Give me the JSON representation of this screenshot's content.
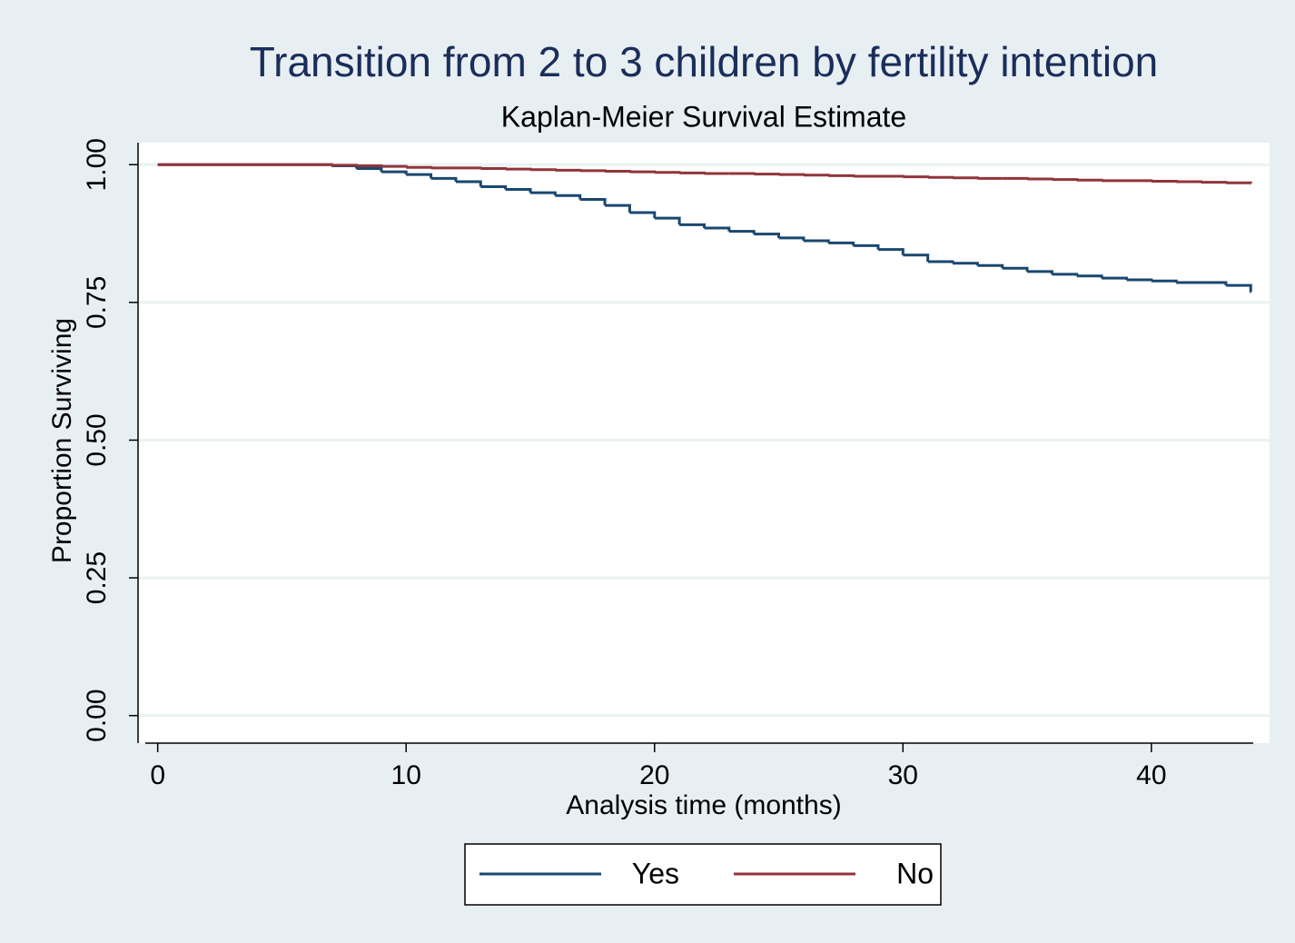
{
  "chart_data": {
    "type": "line",
    "step": true,
    "title": "Transition from 2 to 3 children by fertility intention",
    "subtitle": "Kaplan-Meier Survival Estimate",
    "x_label": "Analysis time (months)",
    "y_label": "Proportion Surviving",
    "x": [
      0,
      1,
      2,
      3,
      4,
      5,
      6,
      7,
      8,
      9,
      10,
      11,
      12,
      13,
      14,
      15,
      16,
      17,
      18,
      19,
      20,
      21,
      22,
      23,
      24,
      25,
      26,
      27,
      28,
      29,
      30,
      31,
      32,
      33,
      34,
      35,
      36,
      37,
      38,
      39,
      40,
      41,
      42,
      43,
      44
    ],
    "series": [
      {
        "name": "Yes",
        "color": "#1a476f",
        "values": [
          1,
          1,
          1,
          1,
          1,
          1,
          1,
          0.998,
          0.993,
          0.987,
          0.982,
          0.975,
          0.969,
          0.96,
          0.955,
          0.949,
          0.944,
          0.937,
          0.926,
          0.913,
          0.903,
          0.891,
          0.885,
          0.879,
          0.874,
          0.867,
          0.862,
          0.858,
          0.853,
          0.846,
          0.836,
          0.824,
          0.821,
          0.817,
          0.812,
          0.806,
          0.801,
          0.798,
          0.794,
          0.791,
          0.789,
          0.786,
          0.786,
          0.781,
          0.769
        ]
      },
      {
        "name": "No",
        "color": "#90353b",
        "values": [
          1,
          1,
          1,
          1,
          1,
          1,
          1,
          0.999,
          0.998,
          0.997,
          0.995,
          0.994,
          0.994,
          0.993,
          0.992,
          0.991,
          0.99,
          0.989,
          0.988,
          0.987,
          0.986,
          0.985,
          0.984,
          0.984,
          0.983,
          0.982,
          0.981,
          0.98,
          0.979,
          0.979,
          0.978,
          0.977,
          0.976,
          0.975,
          0.975,
          0.974,
          0.973,
          0.972,
          0.971,
          0.971,
          0.97,
          0.969,
          0.968,
          0.967,
          0.966
        ]
      }
    ],
    "xlim": [
      -0.5,
      44.1
    ],
    "ylim": [
      -0.05,
      1.04
    ],
    "xticks": [
      0,
      10,
      20,
      30,
      40
    ],
    "yticks": [
      {
        "value": 0,
        "label": "0.00"
      },
      0.25,
      {
        "value": 0.5,
        "label": "0.50"
      },
      0.75,
      {
        "value": 1,
        "label": "1.00"
      }
    ],
    "grid": true,
    "legend": "bottom"
  }
}
